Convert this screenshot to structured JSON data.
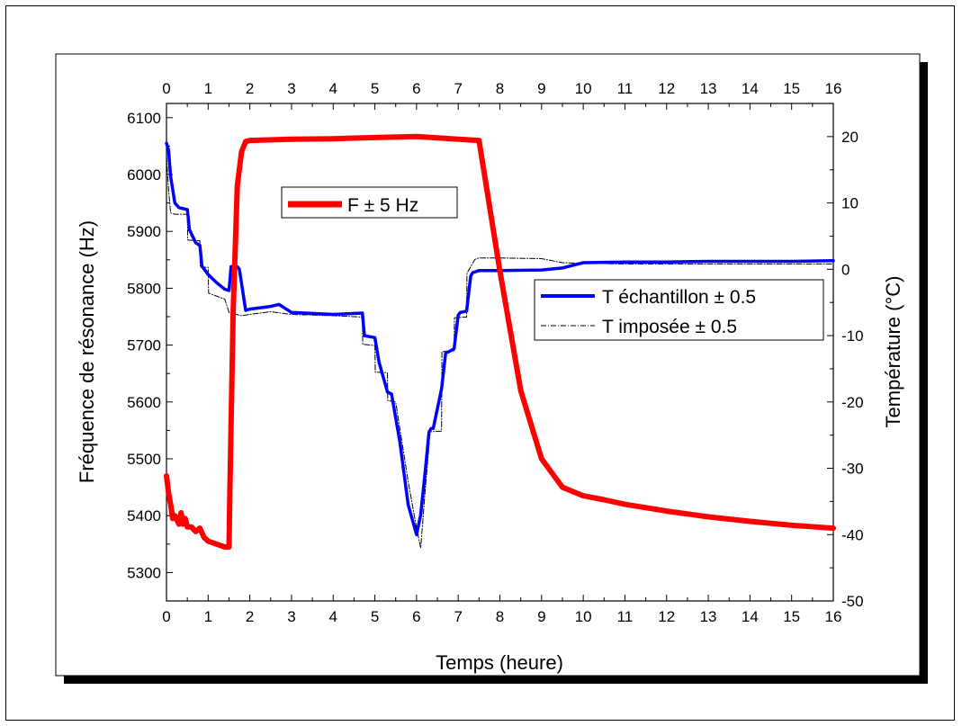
{
  "chart_data": {
    "type": "line",
    "xlabel": "Temps (heure)",
    "ylabel_left": "Fréquence de résonance (Hz)",
    "ylabel_right": "Température (°C)",
    "xlim": [
      0,
      16
    ],
    "x_ticks": [
      0,
      1,
      2,
      3,
      4,
      5,
      6,
      7,
      8,
      9,
      10,
      11,
      12,
      13,
      14,
      15,
      16
    ],
    "ylim_left": [
      5250,
      6125
    ],
    "y_ticks_left": [
      5300,
      5400,
      5500,
      5600,
      5700,
      5800,
      5900,
      6000,
      6100
    ],
    "ylim_right": [
      -50,
      25
    ],
    "y_ticks_right": [
      -50,
      -40,
      -30,
      -20,
      -10,
      0,
      10,
      20
    ],
    "grid": false,
    "legends": [
      {
        "placement": "top-center",
        "entries": [
          0
        ]
      },
      {
        "placement": "center-right",
        "entries": [
          1,
          2
        ]
      }
    ],
    "series": [
      {
        "name": "F ± 5 Hz",
        "axis": "left",
        "color": "#ff0000",
        "x": [
          0,
          0.05,
          0.1,
          0.15,
          0.2,
          0.3,
          0.35,
          0.4,
          0.45,
          0.5,
          0.6,
          0.7,
          0.8,
          0.9,
          1.0,
          1.2,
          1.4,
          1.5,
          1.52,
          1.6,
          1.7,
          1.8,
          1.9,
          2.0,
          3.0,
          4.0,
          5.0,
          6.0,
          7.0,
          7.5,
          8.0,
          8.5,
          9.0,
          9.5,
          10.0,
          10.5,
          11,
          12,
          13,
          14,
          15,
          16
        ],
        "y": [
          5470,
          5440,
          5420,
          5395,
          5400,
          5385,
          5405,
          5385,
          5395,
          5380,
          5380,
          5372,
          5378,
          5362,
          5355,
          5350,
          5345,
          5345,
          5440,
          5760,
          5980,
          6040,
          6058,
          6060,
          6062,
          6063,
          6065,
          6067,
          6062,
          6060,
          5830,
          5620,
          5500,
          5450,
          5435,
          5428,
          5420,
          5408,
          5398,
          5390,
          5383,
          5378
        ]
      },
      {
        "name": "T échantillon ± 0.5",
        "axis": "right",
        "color": "#0000ff",
        "x": [
          0,
          0.05,
          0.1,
          0.2,
          0.3,
          0.5,
          0.55,
          0.7,
          0.8,
          0.85,
          1.0,
          1.2,
          1.4,
          1.5,
          1.55,
          1.7,
          1.75,
          1.9,
          2.0,
          2.5,
          2.7,
          3.0,
          4.0,
          4.7,
          4.75,
          5.0,
          5.1,
          5.3,
          5.4,
          5.6,
          5.8,
          6.0,
          6.1,
          6.2,
          6.3,
          6.35,
          6.4,
          6.6,
          6.7,
          6.75,
          6.9,
          7.0,
          7.05,
          7.2,
          7.3,
          7.35,
          7.5,
          7.6,
          8.0,
          9.0,
          9.5,
          10.0,
          11,
          12,
          13,
          14,
          15,
          16
        ],
        "y": [
          19,
          18,
          14,
          10,
          9.3,
          9.0,
          6.0,
          4.0,
          3.6,
          0.5,
          -0.8,
          -2.0,
          -3.0,
          -3.2,
          0.4,
          0.4,
          0.0,
          -6.2,
          -6.0,
          -5.6,
          -5.3,
          -6.5,
          -6.8,
          -6.6,
          -10.0,
          -10.3,
          -14.0,
          -18.5,
          -18.8,
          -26.0,
          -35.5,
          -40.0,
          -37.0,
          -31.0,
          -24.5,
          -24.0,
          -24.0,
          -18.0,
          -12.5,
          -12.5,
          -12.0,
          -6.9,
          -6.5,
          -6.3,
          -1.0,
          -0.5,
          -0.2,
          -0.2,
          -0.2,
          -0.1,
          0.2,
          1.0,
          1.1,
          1.1,
          1.2,
          1.2,
          1.2,
          1.3
        ]
      },
      {
        "name": "T imposée ± 0.5",
        "axis": "right",
        "color": "#000000",
        "x": [
          0,
          0.05,
          0.1,
          0.2,
          0.5,
          0.51,
          0.8,
          0.81,
          1.0,
          1.01,
          1.4,
          1.5,
          1.8,
          2.0,
          2.5,
          3.0,
          4.0,
          4.7,
          4.71,
          5.0,
          5.01,
          5.3,
          5.31,
          5.5,
          5.6,
          5.8,
          6.0,
          6.1,
          6.2,
          6.3,
          6.31,
          6.6,
          6.61,
          6.9,
          6.91,
          7.2,
          7.21,
          7.4,
          7.5,
          8.0,
          9.0,
          9.5,
          10.0,
          11,
          12,
          13,
          14,
          15,
          16
        ],
        "y": [
          17,
          12,
          8.5,
          8.3,
          8.3,
          4.4,
          4.3,
          0.3,
          0.3,
          -3.6,
          -4.5,
          -6.5,
          -7.0,
          -6.8,
          -6.4,
          -6.8,
          -7.0,
          -7.2,
          -11.3,
          -11.5,
          -15.5,
          -15.6,
          -19.8,
          -20.0,
          -24.0,
          -32.0,
          -39.0,
          -42.0,
          -34.0,
          -26.5,
          -24.5,
          -24.4,
          -12.4,
          -12.3,
          -7.3,
          -7.2,
          -0.6,
          1.5,
          1.7,
          1.7,
          1.6,
          1.0,
          0.9,
          0.8,
          0.8,
          0.8,
          0.8,
          0.8,
          0.8
        ]
      }
    ]
  }
}
